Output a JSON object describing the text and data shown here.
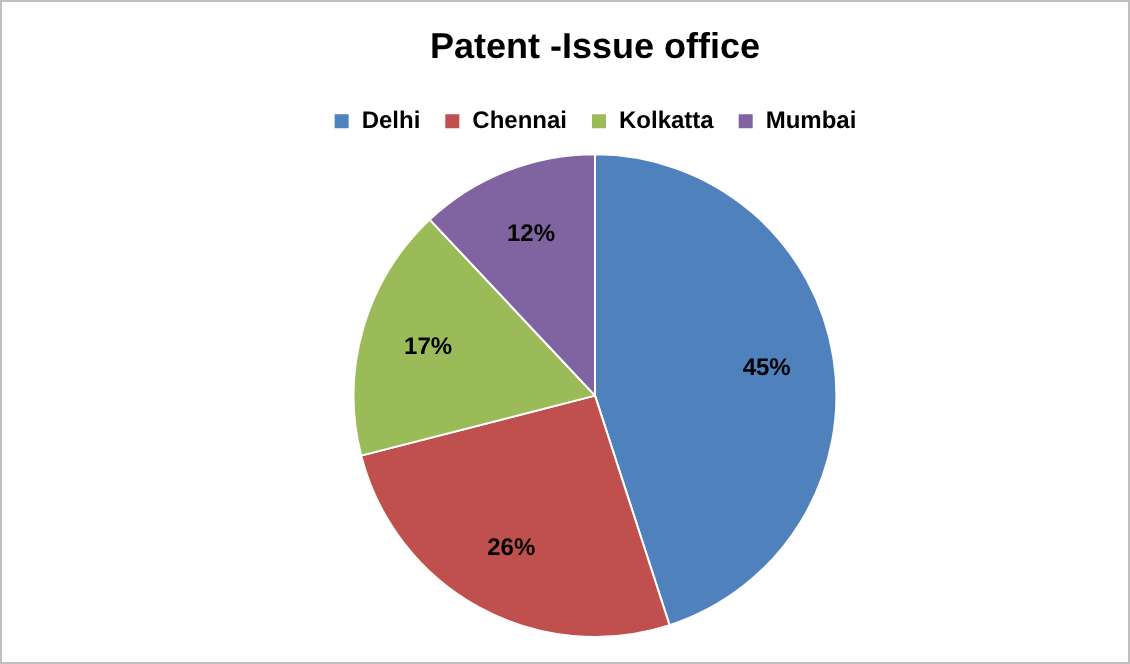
{
  "chart_data": {
    "type": "pie",
    "title": "Patent -Issue office",
    "legend": "top",
    "categories": [
      "Delhi",
      "Chennai",
      "Kolkatta",
      "Mumbai"
    ],
    "values": [
      45,
      26,
      17,
      12
    ],
    "colors": [
      "#4f81bd",
      "#c0504d",
      "#9bbb59",
      "#8064a2"
    ],
    "value_labels": [
      "45%",
      "26%",
      "17%",
      "12%"
    ]
  }
}
